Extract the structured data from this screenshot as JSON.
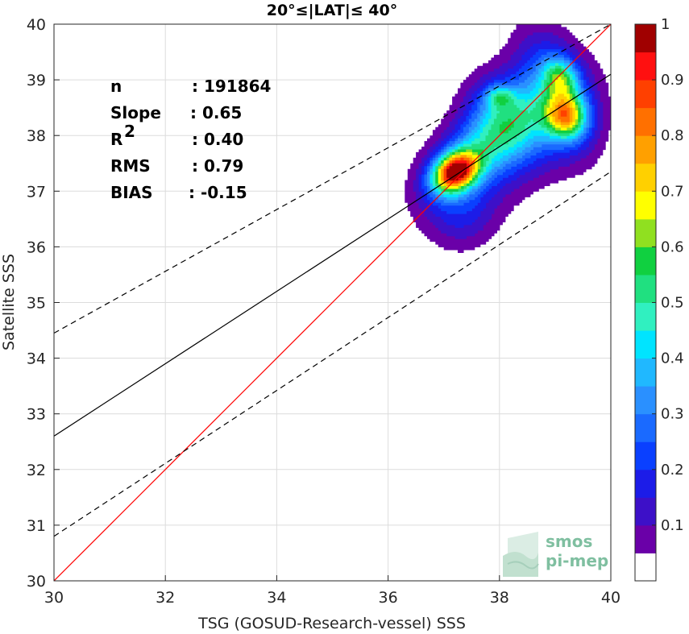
{
  "chart_data": {
    "type": "contour",
    "title": "20°≤|LAT|≤ 40°",
    "xlabel": "TSG (GOSUD-Research-vessel) SSS",
    "ylabel": "Satellite SSS",
    "xlim": [
      30,
      40
    ],
    "ylim": [
      30,
      40
    ],
    "x_ticks": [
      "30",
      "32",
      "34",
      "36",
      "38",
      "40"
    ],
    "y_ticks": [
      "30",
      "31",
      "32",
      "33",
      "34",
      "35",
      "36",
      "37",
      "38",
      "39",
      "40"
    ],
    "grid": true,
    "stats": [
      {
        "label": "n",
        "value": ": 191864"
      },
      {
        "label": "Slope",
        "value": ": 0.65"
      },
      {
        "label": "R",
        "sup": "2",
        "value": ": 0.40"
      },
      {
        "label": "RMS",
        "value": ": 0.79"
      },
      {
        "label": "BIAS",
        "value": ": -0.15"
      }
    ],
    "lines": [
      {
        "name": "identity",
        "color": "#ff0000",
        "style": "solid",
        "points": [
          [
            30,
            30
          ],
          [
            40,
            40
          ]
        ]
      },
      {
        "name": "regression",
        "color": "#000000",
        "style": "solid",
        "points": [
          [
            30,
            32.6
          ],
          [
            40,
            39.1
          ]
        ]
      },
      {
        "name": "upper-bound",
        "color": "#000000",
        "style": "dashed",
        "points": [
          [
            30,
            34.45
          ],
          [
            40,
            40.0
          ]
        ]
      },
      {
        "name": "lower-bound",
        "color": "#000000",
        "style": "dashed",
        "points": [
          [
            30,
            30.8
          ],
          [
            40,
            37.35
          ]
        ]
      }
    ],
    "density_peaks": [
      {
        "name": "main-peak",
        "x": 37.2,
        "y": 37.35,
        "max": 1.0
      },
      {
        "name": "north-peak",
        "x": 38.0,
        "y": 38.7,
        "max": 0.6
      },
      {
        "name": "east-peak",
        "x": 39.2,
        "y": 38.35,
        "max": 0.75
      },
      {
        "name": "east-upper-peak",
        "x": 39.1,
        "y": 39.05,
        "max": 0.6
      }
    ],
    "colorbar": {
      "ticks": [
        "0.1",
        "0.2",
        "0.3",
        "0.4",
        "0.5",
        "0.6",
        "0.7",
        "0.8",
        "0.9",
        "1"
      ],
      "levels": [
        0.05,
        0.1,
        0.15,
        0.2,
        0.25,
        0.3,
        0.35,
        0.4,
        0.45,
        0.5,
        0.55,
        0.6,
        0.65,
        0.7,
        0.75,
        0.8,
        0.85,
        0.9,
        0.95
      ],
      "colors": [
        "#ffffff",
        "#6a00a8",
        "#3d10c8",
        "#1c1ce8",
        "#0a40ff",
        "#1a6aff",
        "#2a90ff",
        "#20b8ff",
        "#00e4ff",
        "#30f0c0",
        "#20e080",
        "#10d040",
        "#90e020",
        "#ffff00",
        "#ffd000",
        "#ffa000",
        "#ff7000",
        "#ff4000",
        "#ff1010",
        "#a00000"
      ]
    }
  },
  "logo": {
    "line1": "smos",
    "line2": "pi-mep"
  }
}
